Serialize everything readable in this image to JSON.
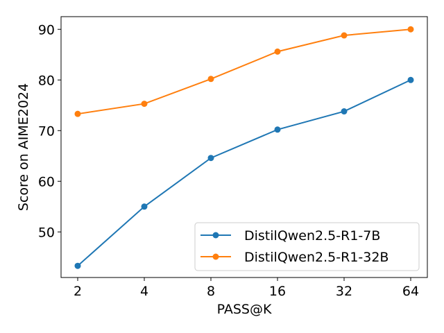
{
  "chart_data": {
    "type": "line",
    "title": "",
    "xlabel": "PASS@K",
    "ylabel": "Score on AIME2024",
    "categories": [
      "2",
      "4",
      "8",
      "16",
      "32",
      "64"
    ],
    "x_scale": "log2",
    "ylim": [
      41,
      92.5
    ],
    "yticks": [
      50,
      60,
      70,
      80,
      90
    ],
    "grid": false,
    "legend_position": "bottom-right",
    "series": [
      {
        "name": "DistilQwen2.5-R1-7B",
        "color": "#1f77b4",
        "values": [
          43.3,
          55.0,
          64.6,
          70.2,
          73.8,
          80.0
        ]
      },
      {
        "name": "DistilQwen2.5-R1-32B",
        "color": "#ff7f0e",
        "values": [
          73.3,
          75.3,
          80.2,
          85.6,
          88.8,
          90.0
        ]
      }
    ]
  }
}
